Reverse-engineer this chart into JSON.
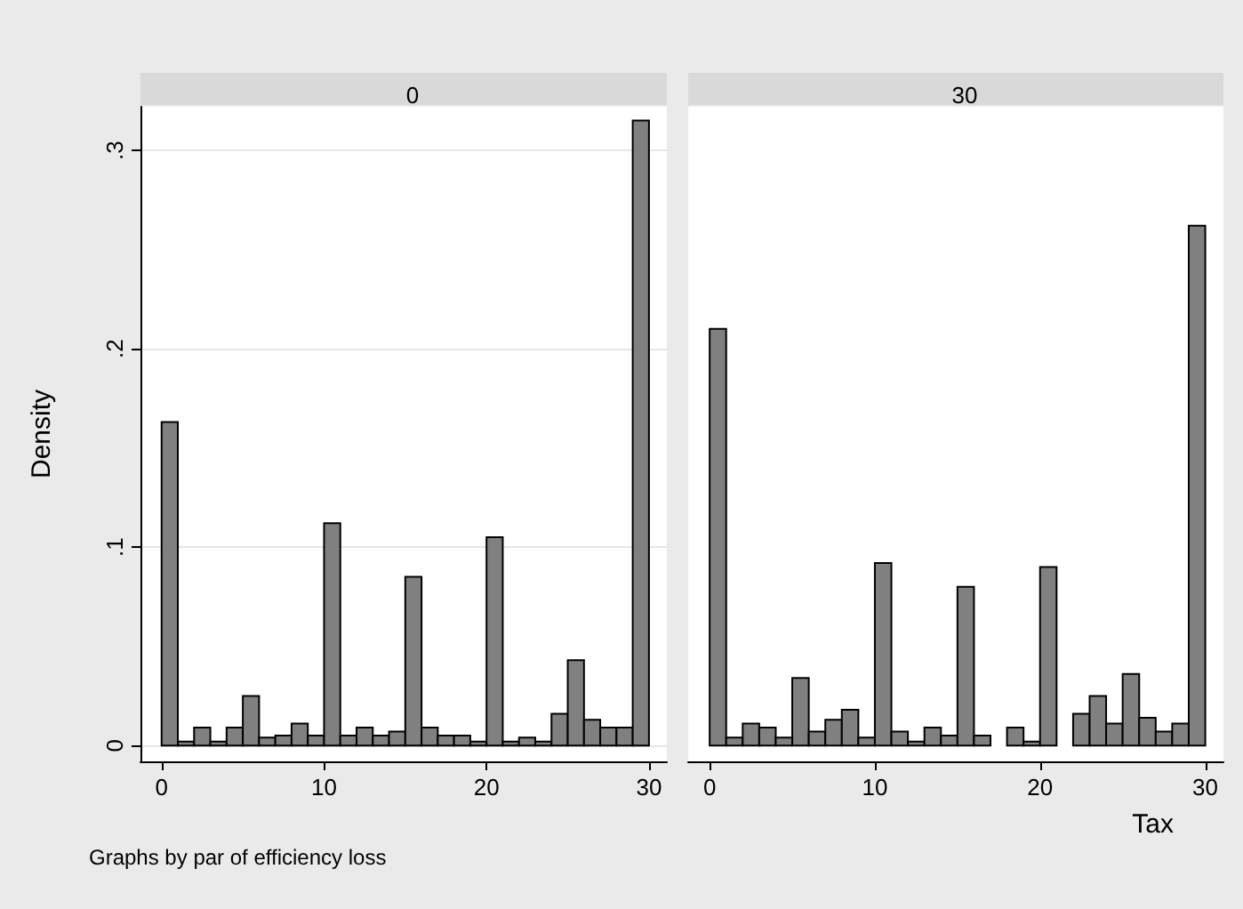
{
  "chart_data": [
    {
      "type": "histogram",
      "title": "0",
      "ylabel": "Density",
      "annotations": [
        "Graphs by par of efficiency loss"
      ],
      "bins": [
        0,
        1,
        2,
        3,
        4,
        5,
        6,
        7,
        8,
        9,
        10,
        11,
        12,
        13,
        14,
        15,
        16,
        17,
        18,
        19,
        20,
        21,
        22,
        23,
        24,
        25,
        26,
        27,
        28,
        29,
        30
      ],
      "values": [
        0.163,
        0.002,
        0.009,
        0.002,
        0.009,
        0.025,
        0.004,
        0.005,
        0.011,
        0.005,
        0.112,
        0.005,
        0.009,
        0.005,
        0.007,
        0.085,
        0.009,
        0.005,
        0.005,
        0.002,
        0.105,
        0.002,
        0.004,
        0.002,
        0.016,
        0.043,
        0.013,
        0.009,
        0.009,
        0.315
      ],
      "color": "#808080",
      "xlim": [
        -1.3,
        31.1
      ],
      "ylim": [
        -0.008,
        0.322
      ],
      "xticks": [
        0,
        10,
        20,
        30
      ],
      "yticks": [
        {
          "value": 0,
          "label": "0"
        },
        {
          "value": 0.1,
          "label": ".1"
        },
        {
          "value": 0.2,
          "label": ".2"
        },
        {
          "value": 0.3,
          "label": ".3"
        }
      ],
      "grid": "y"
    },
    {
      "type": "histogram",
      "title": "30",
      "xlabel": "Tax",
      "bins": [
        0,
        1,
        2,
        3,
        4,
        5,
        6,
        7,
        8,
        9,
        10,
        11,
        12,
        13,
        14,
        15,
        16,
        17,
        18,
        19,
        20,
        21,
        22,
        23,
        24,
        25,
        26,
        27,
        28,
        29,
        30
      ],
      "values": [
        0.21,
        0.004,
        0.011,
        0.009,
        0.004,
        0.034,
        0.007,
        0.013,
        0.018,
        0.004,
        0.092,
        0.007,
        0.002,
        0.009,
        0.005,
        0.08,
        0.005,
        0,
        0.009,
        0.002,
        0.09,
        0,
        0.016,
        0.025,
        0.011,
        0.036,
        0.014,
        0.007,
        0.011,
        0.262
      ],
      "color": "#808080",
      "xlim": [
        -1.3,
        31.1
      ],
      "ylim": [
        -0.008,
        0.322
      ],
      "xticks": [
        0,
        10,
        20,
        30
      ],
      "tick_labels": "x"
    }
  ]
}
